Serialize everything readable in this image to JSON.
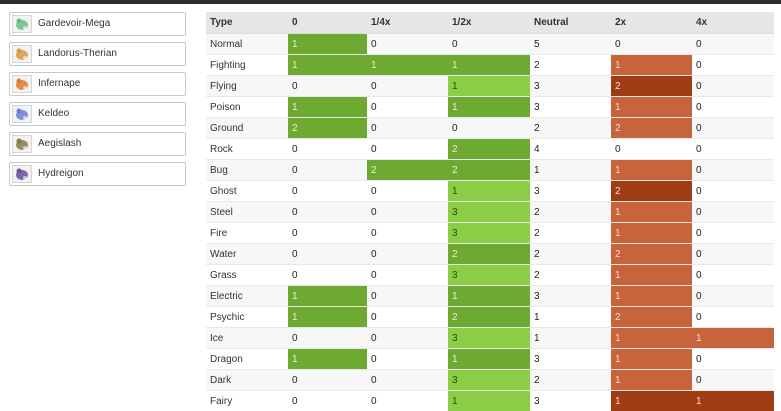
{
  "colors": {
    "resist_half": "#6eaa32",
    "resist_quarter_light": "#8ccd46",
    "weak_2x": "#c8643c",
    "weak_2x_dark": "#a03c14",
    "weak_4x": "#a03c14"
  },
  "team": [
    {
      "name": "Gardevoir-Mega",
      "icon": "gardevoir-mega-sprite-icon",
      "tint": "#6dbb84"
    },
    {
      "name": "Landorus-Therian",
      "icon": "landorus-therian-sprite-icon",
      "tint": "#d79a4a"
    },
    {
      "name": "Infernape",
      "icon": "infernape-sprite-icon",
      "tint": "#e07a30"
    },
    {
      "name": "Keldeo",
      "icon": "keldeo-sprite-icon",
      "tint": "#6f7fd6"
    },
    {
      "name": "Aegislash",
      "icon": "aegislash-sprite-icon",
      "tint": "#8a7a4a"
    },
    {
      "name": "Hydreigon",
      "icon": "hydreigon-sprite-icon",
      "tint": "#6a4f9a"
    }
  ],
  "table": {
    "headers": [
      "Type",
      "0",
      "1/4x",
      "1/2x",
      "Neutral",
      "2x",
      "4x"
    ],
    "rows": [
      {
        "type": "Normal",
        "cells": [
          "1",
          "0",
          "0",
          "5",
          "0",
          "0"
        ],
        "styles": [
          "g",
          "",
          "",
          "",
          "",
          ""
        ]
      },
      {
        "type": "Fighting",
        "cells": [
          "1",
          "1",
          "1",
          "2",
          "1",
          "0"
        ],
        "styles": [
          "g",
          "g",
          "g",
          "",
          "r",
          ""
        ]
      },
      {
        "type": "Flying",
        "cells": [
          "0",
          "0",
          "1",
          "3",
          "2",
          "0"
        ],
        "styles": [
          "",
          "",
          "lg",
          "",
          "d",
          ""
        ]
      },
      {
        "type": "Poison",
        "cells": [
          "1",
          "0",
          "1",
          "3",
          "1",
          "0"
        ],
        "styles": [
          "g",
          "",
          "g",
          "",
          "r",
          ""
        ]
      },
      {
        "type": "Ground",
        "cells": [
          "2",
          "0",
          "0",
          "2",
          "2",
          "0"
        ],
        "styles": [
          "g",
          "",
          "",
          "",
          "r",
          ""
        ]
      },
      {
        "type": "Rock",
        "cells": [
          "0",
          "0",
          "2",
          "4",
          "0",
          "0"
        ],
        "styles": [
          "",
          "",
          "g",
          "",
          "",
          ""
        ]
      },
      {
        "type": "Bug",
        "cells": [
          "0",
          "2",
          "2",
          "1",
          "1",
          "0"
        ],
        "styles": [
          "",
          "g",
          "g",
          "",
          "r",
          ""
        ]
      },
      {
        "type": "Ghost",
        "cells": [
          "0",
          "0",
          "1",
          "3",
          "2",
          "0"
        ],
        "styles": [
          "",
          "",
          "lg",
          "",
          "d",
          ""
        ]
      },
      {
        "type": "Steel",
        "cells": [
          "0",
          "0",
          "3",
          "2",
          "1",
          "0"
        ],
        "styles": [
          "",
          "",
          "lg",
          "",
          "r",
          ""
        ]
      },
      {
        "type": "Fire",
        "cells": [
          "0",
          "0",
          "3",
          "2",
          "1",
          "0"
        ],
        "styles": [
          "",
          "",
          "lg",
          "",
          "r",
          ""
        ]
      },
      {
        "type": "Water",
        "cells": [
          "0",
          "0",
          "2",
          "2",
          "2",
          "0"
        ],
        "styles": [
          "",
          "",
          "g",
          "",
          "r",
          ""
        ]
      },
      {
        "type": "Grass",
        "cells": [
          "0",
          "0",
          "3",
          "2",
          "1",
          "0"
        ],
        "styles": [
          "",
          "",
          "lg",
          "",
          "r",
          ""
        ]
      },
      {
        "type": "Electric",
        "cells": [
          "1",
          "0",
          "1",
          "3",
          "1",
          "0"
        ],
        "styles": [
          "g",
          "",
          "g",
          "",
          "r",
          ""
        ]
      },
      {
        "type": "Psychic",
        "cells": [
          "1",
          "0",
          "2",
          "1",
          "2",
          "0"
        ],
        "styles": [
          "g",
          "",
          "g",
          "",
          "r",
          ""
        ]
      },
      {
        "type": "Ice",
        "cells": [
          "0",
          "0",
          "3",
          "1",
          "1",
          "1"
        ],
        "styles": [
          "",
          "",
          "lg",
          "",
          "r",
          "r"
        ]
      },
      {
        "type": "Dragon",
        "cells": [
          "1",
          "0",
          "1",
          "3",
          "1",
          "0"
        ],
        "styles": [
          "g",
          "",
          "g",
          "",
          "r",
          ""
        ]
      },
      {
        "type": "Dark",
        "cells": [
          "0",
          "0",
          "3",
          "2",
          "1",
          "0"
        ],
        "styles": [
          "",
          "",
          "lg",
          "",
          "r",
          ""
        ]
      },
      {
        "type": "Fairy",
        "cells": [
          "0",
          "0",
          "1",
          "3",
          "1",
          "1"
        ],
        "styles": [
          "",
          "",
          "lg",
          "",
          "d",
          "d"
        ]
      }
    ]
  }
}
